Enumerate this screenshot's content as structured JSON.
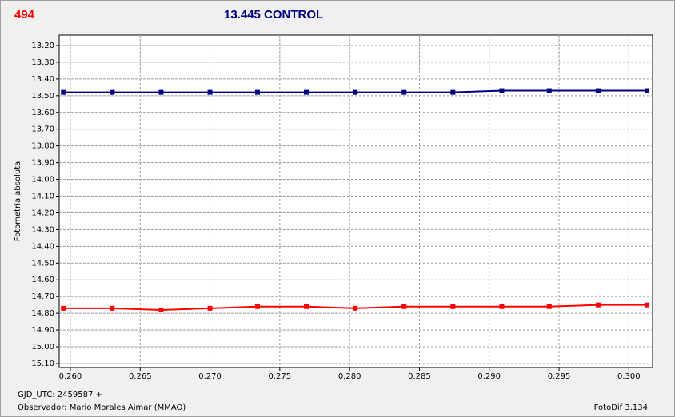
{
  "chart_data": {
    "type": "line",
    "tag": "494",
    "title": "13.445 CONTROL",
    "y_label": "Fotometría absoluta",
    "annotations": [
      "GJD_UTC: 2459587 +",
      "Observador: Mario Morales Aimar (MMAO)",
      "FotoDif 3.134"
    ],
    "x": [
      0.2595,
      0.263,
      0.2665,
      0.27,
      0.2734,
      0.2769,
      0.2804,
      0.2839,
      0.2874,
      0.2909,
      0.2943,
      0.2978,
      0.3013
    ],
    "series": [
      {
        "color": "#000080",
        "values": [
          13.48,
          13.48,
          13.48,
          13.48,
          13.48,
          13.48,
          13.48,
          13.48,
          13.48,
          13.47,
          13.47,
          13.47,
          13.47
        ]
      },
      {
        "color": "#ff0000",
        "values": [
          14.77,
          14.77,
          14.78,
          14.77,
          14.76,
          14.76,
          14.77,
          14.76,
          14.76,
          14.76,
          14.76,
          14.75,
          14.75
        ]
      }
    ],
    "xlim": [
      0.2592,
      0.3017
    ],
    "ylim": [
      15.124,
      13.138
    ],
    "xticks": [
      {
        "value": 0.26,
        "label": "0.260"
      },
      {
        "value": 0.265,
        "label": "0.265"
      },
      {
        "value": 0.27,
        "label": "0.270"
      },
      {
        "value": 0.275,
        "label": "0.275"
      },
      {
        "value": 0.28,
        "label": "0.280"
      },
      {
        "value": 0.285,
        "label": "0.285"
      },
      {
        "value": 0.29,
        "label": "0.290"
      },
      {
        "value": 0.295,
        "label": "0.295"
      },
      {
        "value": 0.3,
        "label": "0.300"
      }
    ],
    "yticks": [
      {
        "value": 13.2,
        "label": "13.20"
      },
      {
        "value": 13.3,
        "label": "13.30"
      },
      {
        "value": 13.4,
        "label": "13.40"
      },
      {
        "value": 13.5,
        "label": "13.50"
      },
      {
        "value": 13.6,
        "label": "13.60"
      },
      {
        "value": 13.7,
        "label": "13.70"
      },
      {
        "value": 13.8,
        "label": "13.80"
      },
      {
        "value": 13.9,
        "label": "13.90"
      },
      {
        "value": 14.0,
        "label": "14.00"
      },
      {
        "value": 14.1,
        "label": "14.10"
      },
      {
        "value": 14.2,
        "label": "14.20"
      },
      {
        "value": 14.3,
        "label": "14.30"
      },
      {
        "value": 14.4,
        "label": "14.40"
      },
      {
        "value": 14.5,
        "label": "14.50"
      },
      {
        "value": 14.6,
        "label": "14.60"
      },
      {
        "value": 14.7,
        "label": "14.70"
      },
      {
        "value": 14.8,
        "label": "14.80"
      },
      {
        "value": 14.9,
        "label": "14.90"
      },
      {
        "value": 15.0,
        "label": "15.00"
      },
      {
        "value": 15.1,
        "label": "15.10"
      }
    ],
    "grid": true
  }
}
